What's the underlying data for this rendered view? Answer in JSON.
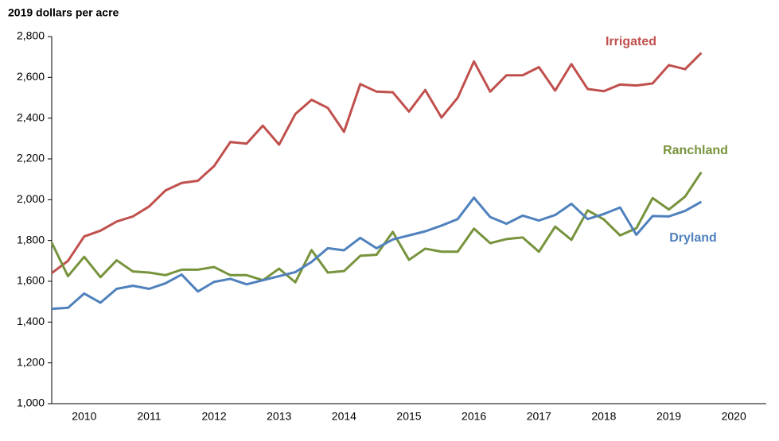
{
  "chart_data": {
    "type": "line",
    "y_label": "2019 dollars per acre",
    "x": [
      2010,
      2010.25,
      2010.5,
      2010.75,
      2011,
      2011.25,
      2011.5,
      2011.75,
      2012,
      2012.25,
      2012.5,
      2012.75,
      2013,
      2013.25,
      2013.5,
      2013.75,
      2014,
      2014.25,
      2014.5,
      2014.75,
      2015,
      2015.25,
      2015.5,
      2015.75,
      2016,
      2016.25,
      2016.5,
      2016.75,
      2017,
      2017.25,
      2017.5,
      2017.75,
      2018,
      2018.25,
      2018.5,
      2018.75,
      2019,
      2019.25,
      2019.5,
      2019.75,
      2020
    ],
    "xlim": [
      2010,
      2021
    ],
    "xticks": [
      {
        "value": 2010.5,
        "label": "2010"
      },
      {
        "value": 2011.5,
        "label": "2011"
      },
      {
        "value": 2012.5,
        "label": "2012"
      },
      {
        "value": 2013.5,
        "label": "2013"
      },
      {
        "value": 2014.5,
        "label": "2014"
      },
      {
        "value": 2015.5,
        "label": "2015"
      },
      {
        "value": 2016.5,
        "label": "2016"
      },
      {
        "value": 2017.5,
        "label": "2017"
      },
      {
        "value": 2018.5,
        "label": "2018"
      },
      {
        "value": 2019.5,
        "label": "2019"
      },
      {
        "value": 2020.5,
        "label": "2020"
      }
    ],
    "ylim": [
      1000,
      2800
    ],
    "yticks": [
      {
        "value": 1000,
        "label": "1,000"
      },
      {
        "value": 1200,
        "label": "1,200"
      },
      {
        "value": 1400,
        "label": "1,400"
      },
      {
        "value": 1600,
        "label": "1,600"
      },
      {
        "value": 1800,
        "label": "1,800"
      },
      {
        "value": 2000,
        "label": "2,000"
      },
      {
        "value": 2200,
        "label": "2,200"
      },
      {
        "value": 2400,
        "label": "2,400"
      },
      {
        "value": 2600,
        "label": "2,600"
      },
      {
        "value": 2800,
        "label": "2,800"
      }
    ],
    "grid": false,
    "series": [
      {
        "name": "Irrigated",
        "color": "#c0504d",
        "values": [
          1640,
          1700,
          1820,
          1848,
          1893,
          1918,
          1967,
          2045,
          2082,
          2093,
          2165,
          2283,
          2275,
          2363,
          2270,
          2420,
          2490,
          2450,
          2333,
          2567,
          2530,
          2527,
          2432,
          2538,
          2403,
          2500,
          2678,
          2530,
          2610,
          2610,
          2650,
          2535,
          2665,
          2543,
          2532,
          2565,
          2560,
          2570,
          2660,
          2640,
          2720
        ]
      },
      {
        "name": "Ranchland",
        "color": "#77933c",
        "values": [
          1790,
          1625,
          1720,
          1620,
          1703,
          1648,
          1643,
          1630,
          1657,
          1657,
          1670,
          1630,
          1630,
          1605,
          1662,
          1595,
          1753,
          1643,
          1650,
          1725,
          1730,
          1842,
          1705,
          1760,
          1745,
          1745,
          1858,
          1787,
          1807,
          1815,
          1745,
          1868,
          1803,
          1948,
          1903,
          1825,
          1860,
          2008,
          1952,
          2015,
          2135
        ]
      },
      {
        "name": "Dryland",
        "color": "#4f81bd",
        "values": [
          1465,
          1470,
          1540,
          1495,
          1563,
          1578,
          1563,
          1590,
          1633,
          1550,
          1597,
          1612,
          1585,
          1605,
          1625,
          1645,
          1695,
          1762,
          1752,
          1813,
          1762,
          1805,
          1825,
          1845,
          1873,
          1905,
          2010,
          1915,
          1882,
          1922,
          1898,
          1925,
          1980,
          1905,
          1930,
          1962,
          1828,
          1920,
          1918,
          1945,
          1990
        ]
      }
    ]
  }
}
